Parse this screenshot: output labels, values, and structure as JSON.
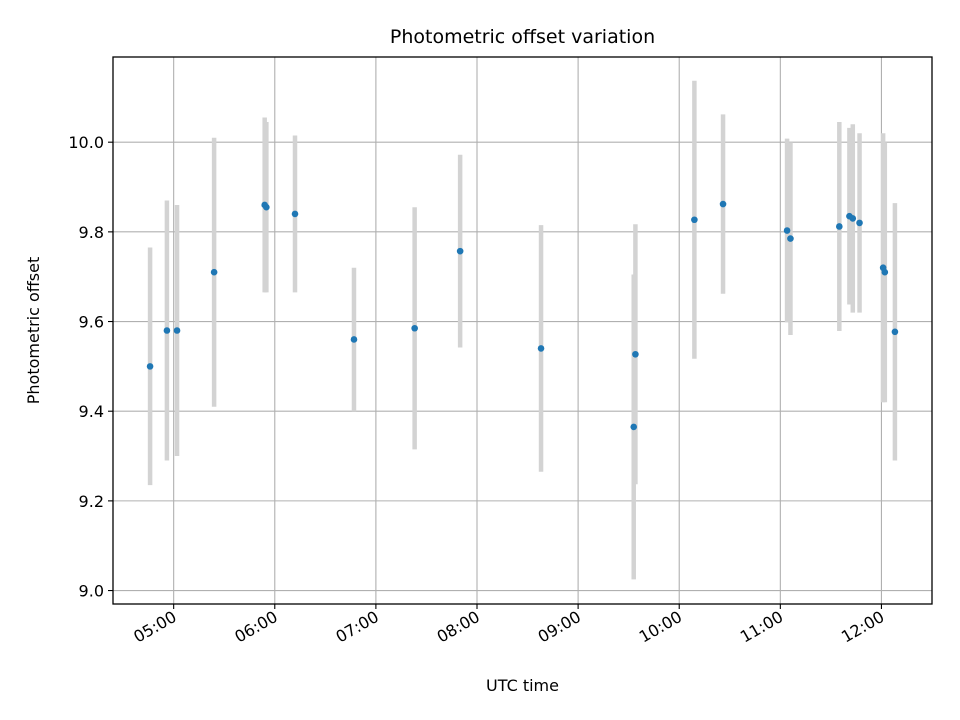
{
  "chart_data": {
    "type": "scatter",
    "title": "Photometric offset variation",
    "xlabel": "UTC time",
    "ylabel": "Photometric offset",
    "x_unit": "hours UTC",
    "xlim": [
      4.4,
      12.5
    ],
    "ylim": [
      8.97,
      10.19
    ],
    "grid": true,
    "x_ticks": [
      {
        "value": 5,
        "label": "05:00"
      },
      {
        "value": 6,
        "label": "06:00"
      },
      {
        "value": 7,
        "label": "07:00"
      },
      {
        "value": 8,
        "label": "08:00"
      },
      {
        "value": 9,
        "label": "09:00"
      },
      {
        "value": 10,
        "label": "10:00"
      },
      {
        "value": 11,
        "label": "11:00"
      },
      {
        "value": 12,
        "label": "12:00"
      }
    ],
    "y_ticks": [
      {
        "value": 9.0,
        "label": "9.0"
      },
      {
        "value": 9.2,
        "label": "9.2"
      },
      {
        "value": 9.4,
        "label": "9.4"
      },
      {
        "value": 9.6,
        "label": "9.6"
      },
      {
        "value": 9.8,
        "label": "9.8"
      },
      {
        "value": 10.0,
        "label": "10.0"
      }
    ],
    "colors": {
      "point": "#1f77b4",
      "errorbar": "#d3d3d3"
    },
    "points": [
      {
        "x": "04:46",
        "y": 9.5,
        "err": 0.265
      },
      {
        "x": "04:56",
        "y": 9.58,
        "err": 0.29
      },
      {
        "x": "05:02",
        "y": 9.58,
        "err": 0.28
      },
      {
        "x": "05:24",
        "y": 9.71,
        "err": 0.3
      },
      {
        "x": "05:54",
        "y": 9.86,
        "err": 0.195
      },
      {
        "x": "05:55",
        "y": 9.855,
        "err": 0.19
      },
      {
        "x": "06:12",
        "y": 9.84,
        "err": 0.175
      },
      {
        "x": "06:47",
        "y": 9.56,
        "err": 0.16
      },
      {
        "x": "07:23",
        "y": 9.585,
        "err": 0.27
      },
      {
        "x": "07:50",
        "y": 9.757,
        "err": 0.215
      },
      {
        "x": "08:38",
        "y": 9.54,
        "err": 0.275
      },
      {
        "x": "09:33",
        "y": 9.365,
        "err": 0.34
      },
      {
        "x": "09:34",
        "y": 9.527,
        "err": 0.29
      },
      {
        "x": "10:09",
        "y": 9.827,
        "err": 0.31
      },
      {
        "x": "10:26",
        "y": 9.862,
        "err": 0.2
      },
      {
        "x": "11:04",
        "y": 9.803,
        "err": 0.205
      },
      {
        "x": "11:06",
        "y": 9.785,
        "err": 0.215
      },
      {
        "x": "11:35",
        "y": 9.812,
        "err": 0.233
      },
      {
        "x": "11:41",
        "y": 9.835,
        "err": 0.197
      },
      {
        "x": "11:43",
        "y": 9.83,
        "err": 0.21
      },
      {
        "x": "11:47",
        "y": 9.82,
        "err": 0.2
      },
      {
        "x": "12:01",
        "y": 9.72,
        "err": 0.3
      },
      {
        "x": "12:02",
        "y": 9.71,
        "err": 0.29
      },
      {
        "x": "12:08",
        "y": 9.577,
        "err": 0.287
      }
    ]
  }
}
